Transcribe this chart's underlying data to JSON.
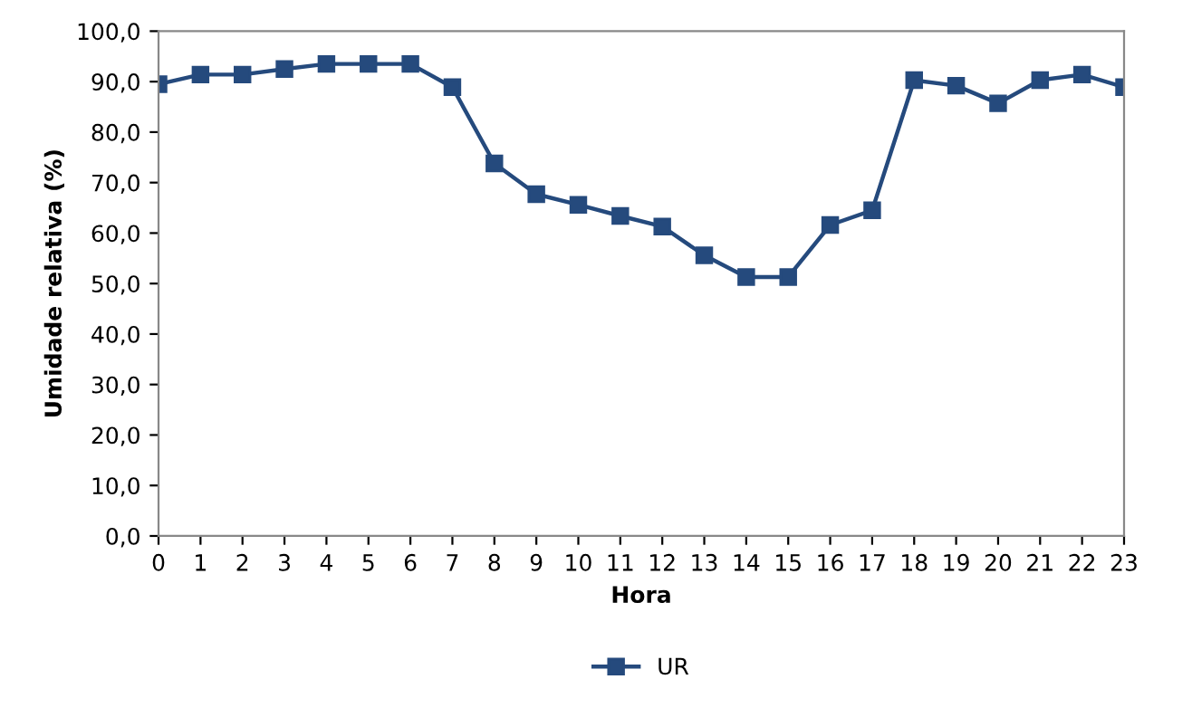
{
  "chart_data": {
    "type": "line",
    "xlabel": "Hora",
    "ylabel": "Umidade relativa (%)",
    "x": [
      0,
      1,
      2,
      3,
      4,
      5,
      6,
      7,
      8,
      9,
      10,
      11,
      12,
      13,
      14,
      15,
      16,
      17,
      18,
      19,
      20,
      21,
      22,
      23
    ],
    "series": [
      {
        "name": "UR",
        "color": "#254a7d",
        "values": [
          89.5,
          91.4,
          91.4,
          92.5,
          93.5,
          93.5,
          93.5,
          88.9,
          73.8,
          67.7,
          65.6,
          63.4,
          61.3,
          55.6,
          51.3,
          51.3,
          61.6,
          64.5,
          90.3,
          89.2,
          85.7,
          90.3,
          91.4,
          88.9
        ]
      }
    ],
    "xlim": [
      0,
      23
    ],
    "xticks": [
      0,
      1,
      2,
      3,
      4,
      5,
      6,
      7,
      8,
      9,
      10,
      11,
      12,
      13,
      14,
      15,
      16,
      17,
      18,
      19,
      20,
      21,
      22,
      23
    ],
    "ylim": [
      0,
      100
    ],
    "yticks": [
      {
        "value": 0,
        "label": "0,0"
      },
      {
        "value": 10,
        "label": "10,0"
      },
      {
        "value": 20,
        "label": "20,0"
      },
      {
        "value": 30,
        "label": "30,0"
      },
      {
        "value": 40,
        "label": "40,0"
      },
      {
        "value": 50,
        "label": "50,0"
      },
      {
        "value": 60,
        "label": "60,0"
      },
      {
        "value": 70,
        "label": "70,0"
      },
      {
        "value": 80,
        "label": "80,0"
      },
      {
        "value": 90,
        "label": "90,0"
      },
      {
        "value": 100,
        "label": "100,0"
      }
    ],
    "grid": false,
    "legend": "bottom",
    "marker": "square",
    "line_style": "solid"
  }
}
